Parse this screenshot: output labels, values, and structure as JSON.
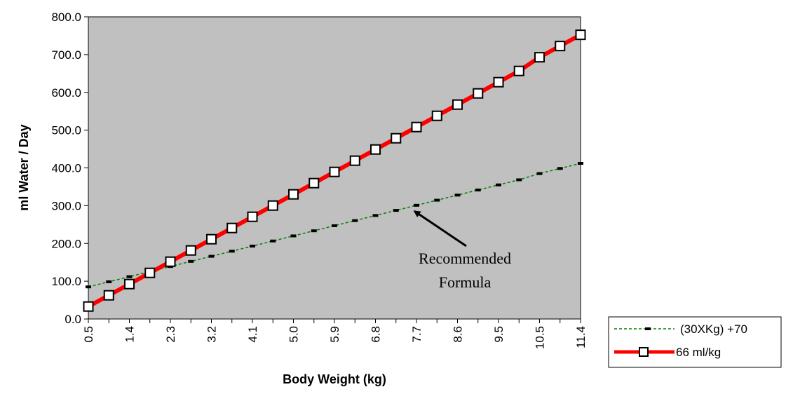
{
  "chart_data": {
    "type": "line",
    "title": "",
    "xlabel": "Body Weight (kg)",
    "ylabel": "ml Water / Day",
    "ylim": [
      0,
      800
    ],
    "yticks": [
      "0.0",
      "100.0",
      "200.0",
      "300.0",
      "400.0",
      "500.0",
      "600.0",
      "700.0",
      "800.0"
    ],
    "x": [
      0.5,
      0.95,
      1.4,
      1.85,
      2.3,
      2.75,
      3.2,
      3.65,
      4.1,
      4.55,
      5.0,
      5.45,
      5.9,
      6.35,
      6.8,
      7.25,
      7.7,
      8.15,
      8.6,
      9.05,
      9.5,
      9.95,
      10.5,
      10.95,
      11.4
    ],
    "xtick_labels": [
      "0.5",
      "1.4",
      "2.3",
      "3.2",
      "4.1",
      "5.0",
      "5.9",
      "6.8",
      "7.7",
      "8.6",
      "9.5",
      "10.5",
      "11.4"
    ],
    "grid": false,
    "legend_position": "bottom-right",
    "plot_background": "#c0c0c0",
    "series": [
      {
        "name": "(30XKg) +70",
        "color": "#008000",
        "marker_color": "#000000",
        "style": "dashed",
        "values": [
          85,
          98.5,
          112,
          125.5,
          139,
          152.5,
          166,
          179.5,
          193,
          206.5,
          220,
          233.5,
          247,
          260.5,
          274,
          287.5,
          301,
          314.5,
          328,
          341.5,
          355,
          368.5,
          385,
          398.5,
          412
        ]
      },
      {
        "name": "66 ml/kg",
        "color": "#ff0000",
        "marker": "square",
        "style": "solid",
        "values": [
          33,
          62.7,
          92.4,
          122.1,
          151.8,
          181.5,
          211.2,
          240.9,
          270.6,
          300.3,
          330,
          359.7,
          389.4,
          419.1,
          448.8,
          478.5,
          508.2,
          537.9,
          567.6,
          597.3,
          627,
          656.7,
          693,
          722.7,
          752.4
        ]
      }
    ],
    "annotations": [
      {
        "text_lines": [
          "Recommended",
          "Formula"
        ],
        "points_to_x": 7.6,
        "points_to_y": 300
      }
    ]
  }
}
